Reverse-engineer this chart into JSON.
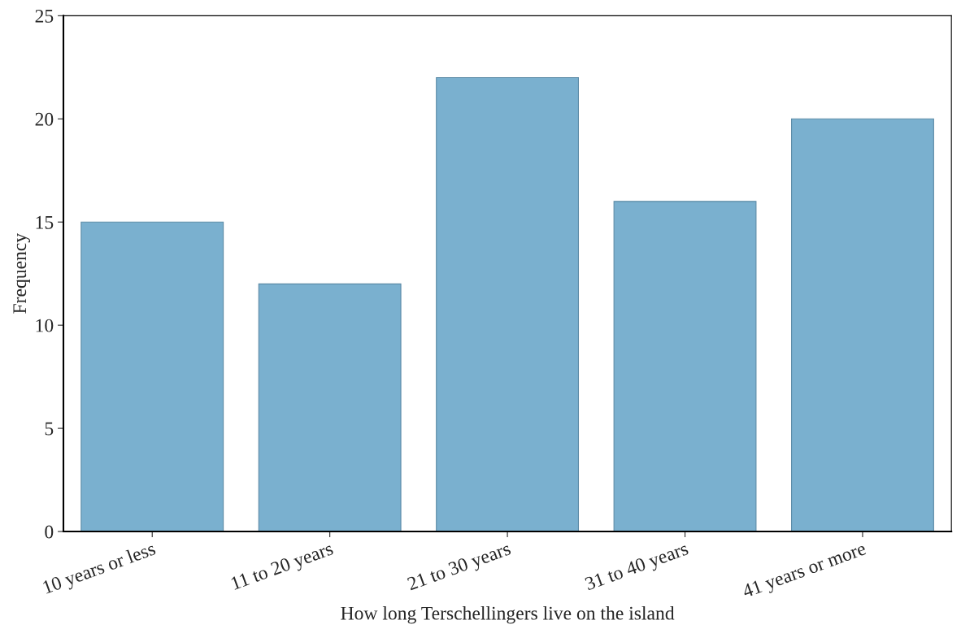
{
  "chart_data": {
    "type": "bar",
    "categories": [
      "10 years or less",
      "11 to 20 years",
      "21 to 30 years",
      "31 to 40 years",
      "41 years or more"
    ],
    "values": [
      15,
      12,
      22,
      16,
      20
    ],
    "color": "#7ab0cf",
    "xlabel": "How long Terschellingers live on the island",
    "ylabel": "Frequency",
    "ylim": [
      0,
      25
    ],
    "yticks": [
      0,
      5,
      10,
      15,
      20,
      25
    ],
    "grid": false,
    "legend": false
  }
}
